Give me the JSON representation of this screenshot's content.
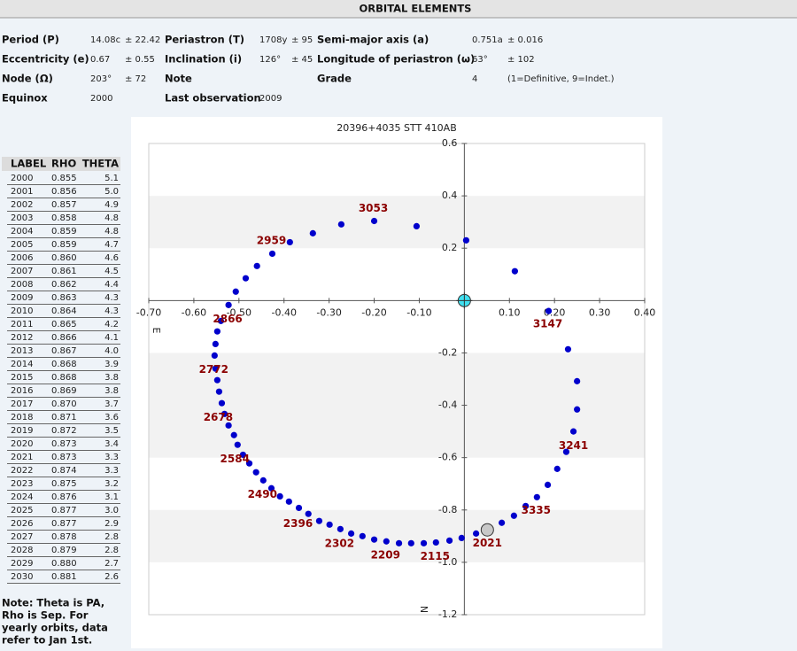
{
  "header": {
    "title": "ORBITAL ELEMENTS"
  },
  "elements": {
    "rows": [
      [
        {
          "label": "Period (P)",
          "value": "14.08c",
          "error": "± 22.42"
        },
        {
          "label": "Periastron (T)",
          "value": "1708y",
          "error": "± 95"
        },
        {
          "label": "Semi-major axis (a)",
          "value": "0.751a",
          "error": "± 0.016"
        }
      ],
      [
        {
          "label": "Eccentricity (e)",
          "value": "0.67",
          "error": "± 0.55"
        },
        {
          "label": "Inclination (i)",
          "value": "126°",
          "error": "± 45"
        },
        {
          "label": "Longitude of periastron (ω)",
          "value": "63°",
          "error": "± 102"
        }
      ],
      [
        {
          "label": "Node (Ω)",
          "value": "203°",
          "error": "± 72"
        },
        {
          "label": "Note"
        },
        {
          "label": "Grade",
          "value": "4",
          "error": "(1=Definitive, 9=Indet.)"
        }
      ],
      [
        {
          "label": "Equinox",
          "value": "2000"
        },
        {
          "label": "Last observation",
          "value": "2009"
        }
      ]
    ]
  },
  "table": {
    "columns": [
      "LABEL",
      "RHO",
      "THETA"
    ],
    "rows": [
      [
        "2000",
        "0.855",
        "5.1"
      ],
      [
        "2001",
        "0.856",
        "5.0"
      ],
      [
        "2002",
        "0.857",
        "4.9"
      ],
      [
        "2003",
        "0.858",
        "4.8"
      ],
      [
        "2004",
        "0.859",
        "4.8"
      ],
      [
        "2005",
        "0.859",
        "4.7"
      ],
      [
        "2006",
        "0.860",
        "4.6"
      ],
      [
        "2007",
        "0.861",
        "4.5"
      ],
      [
        "2008",
        "0.862",
        "4.4"
      ],
      [
        "2009",
        "0.863",
        "4.3"
      ],
      [
        "2010",
        "0.864",
        "4.3"
      ],
      [
        "2011",
        "0.865",
        "4.2"
      ],
      [
        "2012",
        "0.866",
        "4.1"
      ],
      [
        "2013",
        "0.867",
        "4.0"
      ],
      [
        "2014",
        "0.868",
        "3.9"
      ],
      [
        "2015",
        "0.868",
        "3.8"
      ],
      [
        "2016",
        "0.869",
        "3.8"
      ],
      [
        "2017",
        "0.870",
        "3.7"
      ],
      [
        "2018",
        "0.871",
        "3.6"
      ],
      [
        "2019",
        "0.872",
        "3.5"
      ],
      [
        "2020",
        "0.873",
        "3.4"
      ],
      [
        "2021",
        "0.873",
        "3.3"
      ],
      [
        "2022",
        "0.874",
        "3.3"
      ],
      [
        "2023",
        "0.875",
        "3.2"
      ],
      [
        "2024",
        "0.876",
        "3.1"
      ],
      [
        "2025",
        "0.877",
        "3.0"
      ],
      [
        "2026",
        "0.877",
        "2.9"
      ],
      [
        "2027",
        "0.878",
        "2.8"
      ],
      [
        "2028",
        "0.879",
        "2.8"
      ],
      [
        "2029",
        "0.880",
        "2.7"
      ],
      [
        "2030",
        "0.881",
        "2.6"
      ]
    ],
    "note": [
      "Note: Theta is PA,",
      "Rho is Sep. For",
      "yearly orbits, data",
      "refer to Jan 1st."
    ]
  },
  "chart_data": {
    "type": "scatter",
    "title": "20396+4035 STT 410AB",
    "xlabel": "E",
    "ylabel": "N",
    "xlim": [
      -0.7,
      0.4
    ],
    "ylim": [
      -1.2,
      0.6
    ],
    "xticks": [
      {
        "value": -0.7,
        "label": "-0.70"
      },
      {
        "value": -0.6,
        "label": "-0.60"
      },
      {
        "value": -0.5,
        "label": "-0.50"
      },
      {
        "value": -0.4,
        "label": "-0.40"
      },
      {
        "value": -0.3,
        "label": "-0.30"
      },
      {
        "value": -0.2,
        "label": "-0.20"
      },
      {
        "value": -0.1,
        "label": "-0.10"
      },
      {
        "value": 0.1,
        "label": "0.10"
      },
      {
        "value": 0.2,
        "label": "0.20"
      },
      {
        "value": 0.3,
        "label": "0.30"
      },
      {
        "value": 0.4,
        "label": "0.40"
      }
    ],
    "yticks": [
      0.6,
      0.4,
      0.2,
      -0.2,
      -0.4,
      -0.6,
      -0.8,
      {
        "value": -1.0,
        "label": "-1.0"
      },
      -1.2
    ],
    "bands": [
      [
        0.2,
        0.4
      ],
      [
        -0.4,
        -0.2
      ],
      [
        -0.6,
        -0.4
      ],
      [
        -1.0,
        -0.8
      ]
    ],
    "color": "#0000cc",
    "points": {
      "x": [
        0.004,
        0.112,
        0.187,
        0.23,
        0.25,
        0.25,
        0.242,
        0.226,
        0.206,
        0.185,
        0.161,
        0.136,
        0.11,
        0.083,
        0.055,
        0.026,
        -0.006,
        -0.033,
        -0.063,
        -0.09,
        -0.118,
        -0.145,
        -0.173,
        -0.2,
        -0.226,
        -0.251,
        -0.275,
        -0.299,
        -0.322,
        -0.346,
        -0.367,
        -0.389,
        -0.409,
        -0.428,
        -0.446,
        -0.462,
        -0.477,
        -0.491,
        -0.503,
        -0.511,
        -0.523,
        -0.532,
        -0.538,
        -0.544,
        -0.548,
        -0.552,
        -0.554,
        -0.552,
        -0.548,
        -0.54,
        -0.523,
        -0.507,
        -0.485,
        -0.46,
        -0.426,
        -0.387,
        -0.336,
        -0.273,
        -0.2,
        -0.106
      ],
      "y": [
        0.23,
        0.112,
        -0.04,
        -0.186,
        -0.308,
        -0.416,
        -0.5,
        -0.578,
        -0.643,
        -0.704,
        -0.751,
        -0.785,
        -0.822,
        -0.849,
        -0.873,
        -0.89,
        -0.907,
        -0.917,
        -0.924,
        -0.927,
        -0.927,
        -0.927,
        -0.92,
        -0.913,
        -0.9,
        -0.89,
        -0.873,
        -0.856,
        -0.842,
        -0.815,
        -0.792,
        -0.768,
        -0.748,
        -0.717,
        -0.687,
        -0.656,
        -0.622,
        -0.589,
        -0.551,
        -0.514,
        -0.477,
        -0.433,
        -0.392,
        -0.348,
        -0.304,
        -0.26,
        -0.21,
        -0.166,
        -0.118,
        -0.078,
        -0.017,
        0.034,
        0.085,
        0.132,
        0.179,
        0.223,
        0.257,
        0.291,
        0.304,
        0.284
      ]
    },
    "primary": {
      "x": 0,
      "y": 0
    },
    "current": {
      "x": 0.051,
      "y": -0.876
    },
    "annotations": [
      {
        "text": "3053",
        "x": -0.202,
        "y": 0.352
      },
      {
        "text": "2959",
        "x": -0.428,
        "y": 0.227
      },
      {
        "text": "2866",
        "x": -0.525,
        "y": -0.071
      },
      {
        "text": "2772",
        "x": -0.556,
        "y": -0.264
      },
      {
        "text": "2678",
        "x": -0.546,
        "y": -0.447
      },
      {
        "text": "2584",
        "x": -0.509,
        "y": -0.606
      },
      {
        "text": "2490",
        "x": -0.448,
        "y": -0.741
      },
      {
        "text": "2396",
        "x": -0.369,
        "y": -0.853
      },
      {
        "text": "2302",
        "x": -0.277,
        "y": -0.93
      },
      {
        "text": "2209",
        "x": -0.175,
        "y": -0.974
      },
      {
        "text": "2115",
        "x": -0.065,
        "y": -0.978
      },
      {
        "text": "2021",
        "x": 0.051,
        "y": -0.927
      },
      {
        "text": "3335",
        "x": 0.159,
        "y": -0.802
      },
      {
        "text": "3241",
        "x": 0.242,
        "y": -0.555
      },
      {
        "text": "3147",
        "x": 0.185,
        "y": -0.091
      }
    ]
  }
}
